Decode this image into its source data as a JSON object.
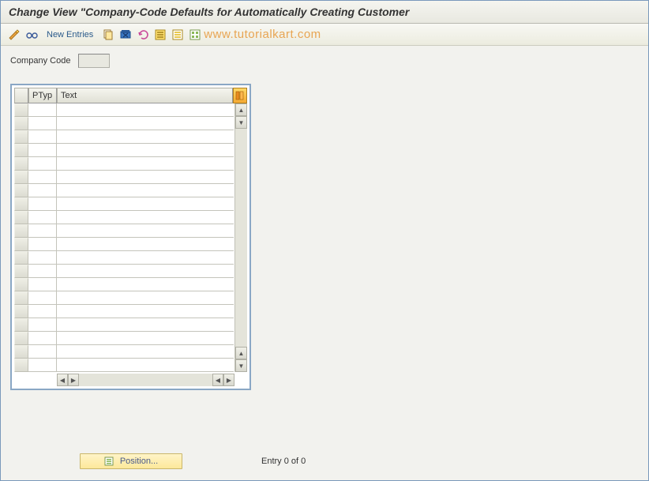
{
  "title": "Change View \"Company-Code Defaults for Automatically Creating Customer",
  "toolbar": {
    "new_entries_label": "New Entries"
  },
  "watermark": "www.tutorialkart.com",
  "field": {
    "company_code_label": "Company Code",
    "company_code_value": ""
  },
  "table": {
    "columns": {
      "ptyp": "PTyp",
      "text": "Text"
    },
    "row_count": 20
  },
  "footer": {
    "position_label": "Position...",
    "entry_text": "Entry 0 of 0"
  },
  "colors": {
    "frame_border": "#8aa7c5",
    "bg": "#f2f2ee",
    "watermark": "#e8a553",
    "position_bg": "#fde89a"
  }
}
